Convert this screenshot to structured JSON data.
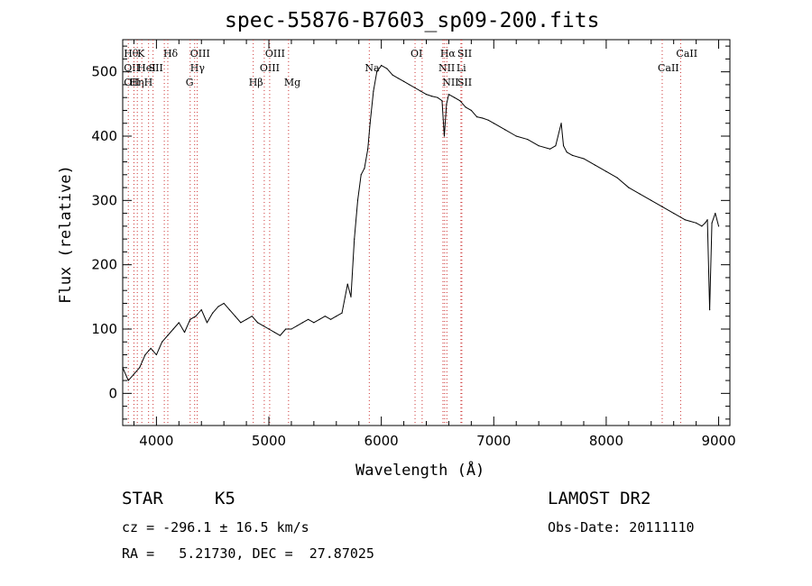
{
  "chart_data": {
    "type": "line",
    "title": "spec-55876-B7603_sp09-200.fits",
    "xlabel": "Wavelength (Å)",
    "ylabel": "Flux (relative)",
    "xlim": [
      3700,
      9100
    ],
    "ylim": [
      -50,
      550
    ],
    "xticks": [
      4000,
      5000,
      6000,
      7000,
      8000,
      9000
    ],
    "yticks": [
      0,
      100,
      200,
      300,
      400,
      500
    ],
    "grid": false,
    "line_color": "#000000",
    "marker_color": "#cc3333",
    "series": [
      {
        "x": [
          3700,
          3750,
          3800,
          3850,
          3900,
          3950,
          4000,
          4050,
          4100,
          4150,
          4200,
          4250,
          4300,
          4350,
          4400,
          4450,
          4500,
          4550,
          4600,
          4650,
          4700,
          4750,
          4800,
          4850,
          4900,
          4950,
          5000,
          5050,
          5100,
          5150,
          5200,
          5250,
          5300,
          5350,
          5400,
          5450,
          5500,
          5550,
          5600,
          5650,
          5700,
          5730,
          5760,
          5790,
          5820,
          5850,
          5880,
          5900,
          5930,
          5960,
          6000,
          6050,
          6100,
          6150,
          6200,
          6250,
          6300,
          6350,
          6400,
          6450,
          6500,
          6540,
          6560,
          6580,
          6600,
          6650,
          6700,
          6750,
          6800,
          6850,
          6900,
          6950,
          7000,
          7100,
          7200,
          7300,
          7400,
          7500,
          7550,
          7600,
          7620,
          7650,
          7700,
          7800,
          7900,
          8000,
          8100,
          8200,
          8300,
          8400,
          8500,
          8600,
          8700,
          8800,
          8850,
          8880,
          8900,
          8920,
          8940,
          8970,
          9000
        ],
        "y": [
          40,
          20,
          30,
          40,
          60,
          70,
          60,
          80,
          90,
          100,
          110,
          95,
          115,
          120,
          130,
          110,
          125,
          135,
          140,
          130,
          120,
          110,
          115,
          120,
          110,
          105,
          100,
          95,
          90,
          100,
          100,
          105,
          110,
          115,
          110,
          115,
          120,
          115,
          120,
          125,
          170,
          150,
          240,
          300,
          340,
          350,
          380,
          420,
          470,
          500,
          510,
          505,
          495,
          490,
          485,
          480,
          475,
          470,
          465,
          462,
          460,
          455,
          400,
          450,
          465,
          460,
          455,
          445,
          440,
          430,
          428,
          425,
          420,
          410,
          400,
          395,
          385,
          380,
          385,
          420,
          385,
          375,
          370,
          365,
          355,
          345,
          335,
          320,
          310,
          300,
          290,
          280,
          270,
          265,
          260,
          265,
          270,
          130,
          265,
          280,
          260
        ]
      }
    ],
    "line_markers": [
      {
        "x": 3750,
        "color": "#cc3333",
        "labels": [
          {
            "text": "Hθ",
            "row": 0
          },
          {
            "text": "OII",
            "row": 1
          },
          {
            "text": "OII",
            "row": 2
          }
        ]
      },
      {
        "x": 3800,
        "color": "#cc3333",
        "labels": [
          {
            "text": "Hη",
            "row": 2
          }
        ]
      },
      {
        "x": 3830,
        "color": "#cc3333",
        "labels": []
      },
      {
        "x": 3870,
        "color": "#cc3333",
        "labels": [
          {
            "text": "K",
            "row": 0
          },
          {
            "text": "HeI",
            "row": 1
          }
        ]
      },
      {
        "x": 3930,
        "color": "#cc3333",
        "labels": [
          {
            "text": "H",
            "row": 2
          }
        ]
      },
      {
        "x": 3970,
        "color": "#cc3333",
        "labels": [
          {
            "text": "SII",
            "row": 1
          }
        ]
      },
      {
        "x": 4070,
        "color": "#cc3333",
        "labels": []
      },
      {
        "x": 4101,
        "color": "#cc3333",
        "labels": [
          {
            "text": "Hδ",
            "row": 0
          }
        ]
      },
      {
        "x": 4300,
        "color": "#cc3333",
        "labels": [
          {
            "text": "G",
            "row": 2
          }
        ]
      },
      {
        "x": 4340,
        "color": "#cc3333",
        "labels": [
          {
            "text": "OIII",
            "row": 0
          },
          {
            "text": "Hγ",
            "row": 1
          }
        ]
      },
      {
        "x": 4363,
        "color": "#cc3333",
        "labels": []
      },
      {
        "x": 4861,
        "color": "#cc3333",
        "labels": [
          {
            "text": "Hβ",
            "row": 2
          }
        ]
      },
      {
        "x": 4959,
        "color": "#cc3333",
        "labels": [
          {
            "text": "OIII",
            "row": 1
          }
        ]
      },
      {
        "x": 5007,
        "color": "#cc3333",
        "labels": [
          {
            "text": "OIII",
            "row": 0
          }
        ]
      },
      {
        "x": 5175,
        "color": "#cc3333",
        "labels": [
          {
            "text": "Mg",
            "row": 2
          }
        ]
      },
      {
        "x": 5893,
        "color": "#cc3333",
        "labels": [
          {
            "text": "Na",
            "row": 1
          }
        ]
      },
      {
        "x": 6300,
        "color": "#cc3333",
        "labels": [
          {
            "text": "OI",
            "row": 0
          }
        ]
      },
      {
        "x": 6363,
        "color": "#cc3333",
        "labels": []
      },
      {
        "x": 6548,
        "color": "#cc3333",
        "labels": [
          {
            "text": "NII",
            "row": 1
          }
        ]
      },
      {
        "x": 6563,
        "color": "#cc3333",
        "labels": [
          {
            "text": "Hα",
            "row": 0
          }
        ]
      },
      {
        "x": 6583,
        "color": "#cc3333",
        "labels": [
          {
            "text": "NII",
            "row": 2
          }
        ]
      },
      {
        "x": 6708,
        "color": "#cc3333",
        "labels": [
          {
            "text": "Li",
            "row": 1
          }
        ]
      },
      {
        "x": 6716,
        "color": "#cc3333",
        "labels": [
          {
            "text": "SII",
            "row": 0
          },
          {
            "text": "SII",
            "row": 2
          }
        ]
      },
      {
        "x": 8498,
        "color": "#cc3333",
        "labels": [
          {
            "text": "CaII",
            "row": 1
          }
        ]
      },
      {
        "x": 8662,
        "color": "#cc3333",
        "labels": [
          {
            "text": "CaII",
            "row": 0
          }
        ]
      }
    ]
  },
  "info": {
    "class": "STAR",
    "subclass": "K5",
    "survey": "LAMOST DR2",
    "cz_line": "cz = -296.1 ± 16.5 km/s",
    "obs_date": "Obs-Date: 20111110",
    "radec": "RA =   5.21730, DEC =  27.87025"
  }
}
